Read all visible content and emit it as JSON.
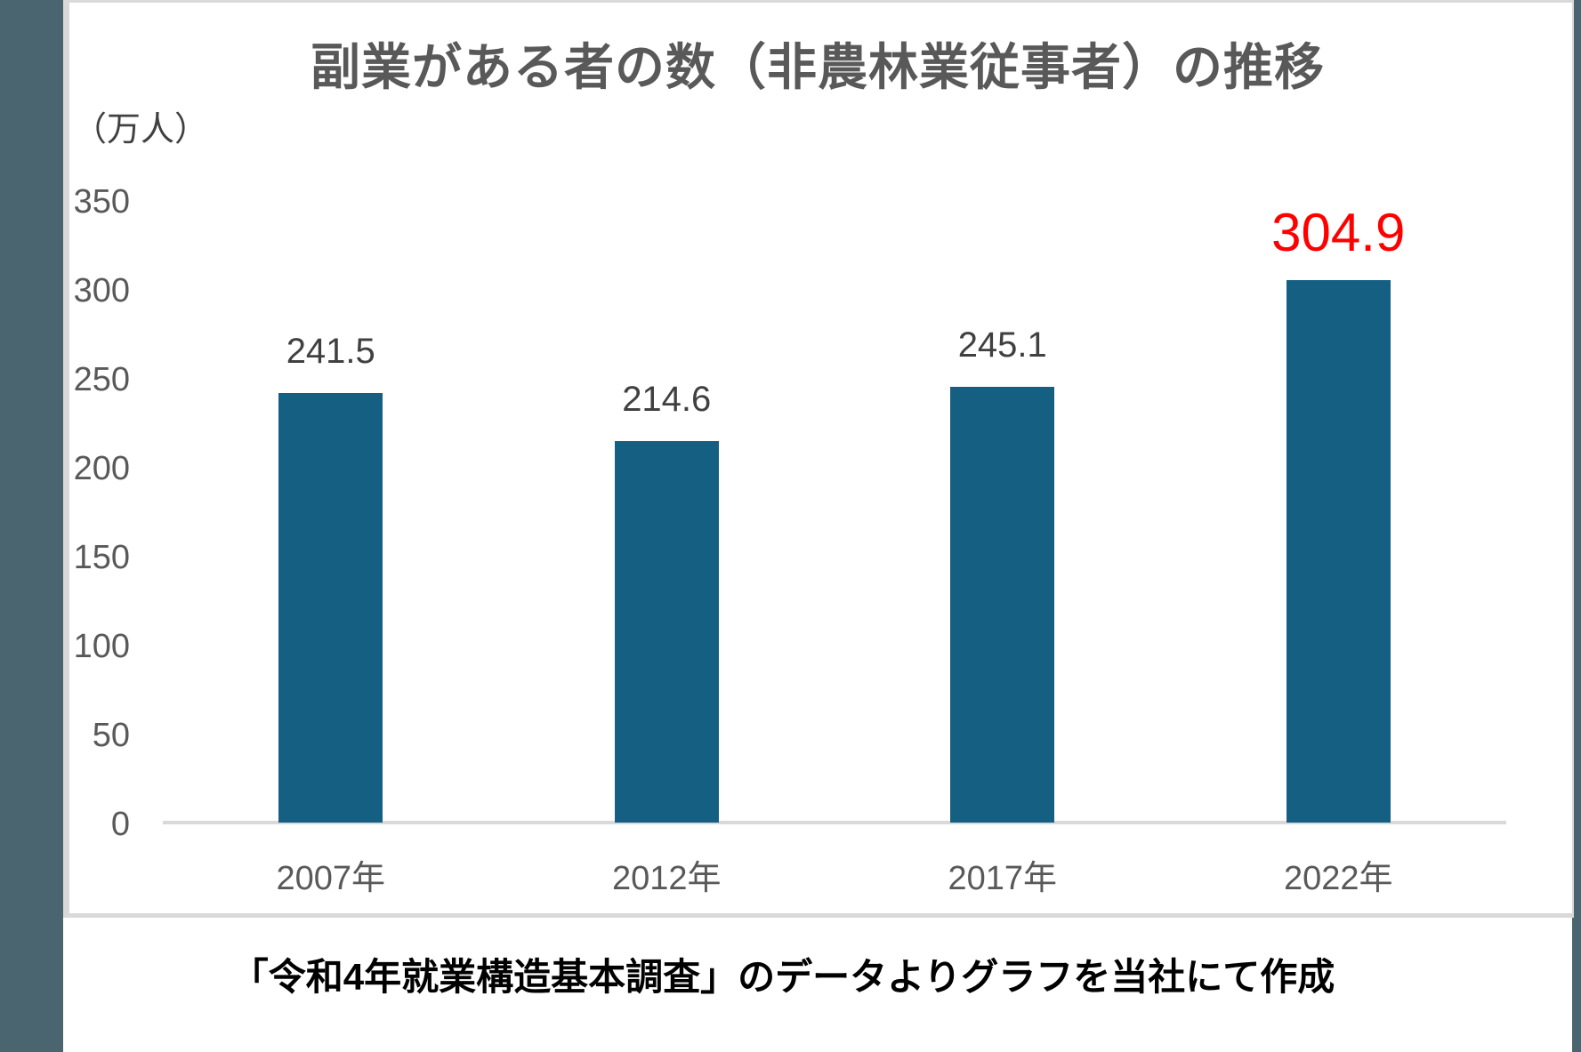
{
  "page": {
    "caption": "「令和4年就業構造基本調査」のデータよりグラフを当社にて作成"
  },
  "chart_data": {
    "type": "bar",
    "title": "副業がある者の数（非農林業従事者）の推移",
    "unit_label": "（万人）",
    "categories": [
      "2007年",
      "2012年",
      "2017年",
      "2022年"
    ],
    "values": [
      241.5,
      214.6,
      245.1,
      304.9
    ],
    "value_labels": [
      "241.5",
      "214.6",
      "245.1",
      "304.9"
    ],
    "highlight_index": 3,
    "ylabel": "万人",
    "ylim": [
      0,
      350
    ],
    "yticks": [
      0,
      50,
      100,
      150,
      200,
      250,
      300,
      350
    ],
    "grid": false,
    "legend": "none",
    "colors": {
      "bar": "#156082",
      "highlight_label": "#FF0000",
      "axis_line": "#D9D9D9",
      "tick_text": "#595959",
      "value_text": "#404040",
      "frame_strip": "#4A6570",
      "card_border": "#D9D9D9",
      "caption_text": "#000000"
    }
  }
}
